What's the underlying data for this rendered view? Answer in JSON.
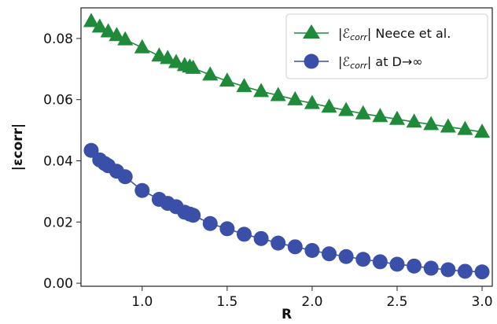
{
  "chart_data": {
    "type": "line",
    "title": "",
    "xlabel": "R",
    "ylabel": "|εcorr|",
    "xlim": [
      0.64,
      3.06
    ],
    "ylim": [
      -0.001,
      0.09
    ],
    "xticks": [
      1.0,
      1.5,
      2.0,
      2.5,
      3.0
    ],
    "xtick_labels": [
      "1.0",
      "1.5",
      "2.0",
      "2.5",
      "3.0"
    ],
    "yticks": [
      0.0,
      0.02,
      0.04,
      0.06,
      0.08
    ],
    "ytick_labels": [
      "0.00",
      "0.02",
      "0.04",
      "0.06",
      "0.08"
    ],
    "grid": false,
    "legend_position": "top-right",
    "series": [
      {
        "name": "|ℰcorr| Neece et al.",
        "legend_main": "|",
        "legend_symbol": "ℰ",
        "legend_sub": "corr",
        "legend_rest": "| Neece et al.",
        "marker": "triangle",
        "color": "#1e8a3a",
        "x": [
          0.7,
          0.75,
          0.8,
          0.85,
          0.9,
          1.0,
          1.1,
          1.15,
          1.2,
          1.25,
          1.28,
          1.3,
          1.4,
          1.5,
          1.6,
          1.7,
          1.8,
          1.9,
          2.0,
          2.1,
          2.2,
          2.3,
          2.4,
          2.5,
          2.6,
          2.7,
          2.8,
          2.9,
          3.0
        ],
        "values": [
          0.0856,
          0.0838,
          0.0822,
          0.081,
          0.0796,
          0.077,
          0.0743,
          0.0735,
          0.0722,
          0.0712,
          0.0707,
          0.0703,
          0.0681,
          0.0661,
          0.0643,
          0.0627,
          0.0614,
          0.06,
          0.0588,
          0.0576,
          0.0565,
          0.0554,
          0.0545,
          0.0536,
          0.0527,
          0.0519,
          0.0511,
          0.0503,
          0.0494
        ]
      },
      {
        "name": "|ℰcorr| at D→∞",
        "legend_main": "|",
        "legend_symbol": "ℰ",
        "legend_sub": "corr",
        "legend_rest": "| at D→∞",
        "marker": "circle",
        "color": "#3a50a8",
        "x": [
          0.7,
          0.75,
          0.78,
          0.8,
          0.85,
          0.9,
          1.0,
          1.1,
          1.15,
          1.2,
          1.25,
          1.28,
          1.3,
          1.4,
          1.5,
          1.6,
          1.7,
          1.8,
          1.9,
          2.0,
          2.1,
          2.2,
          2.3,
          2.4,
          2.5,
          2.6,
          2.7,
          2.8,
          2.9,
          3.0
        ],
        "values": [
          0.0434,
          0.0403,
          0.0391,
          0.0384,
          0.0366,
          0.0348,
          0.0303,
          0.0274,
          0.0261,
          0.025,
          0.0232,
          0.0226,
          0.0222,
          0.0195,
          0.0178,
          0.016,
          0.0146,
          0.0131,
          0.0119,
          0.0107,
          0.0096,
          0.0087,
          0.0078,
          0.007,
          0.0062,
          0.0056,
          0.0049,
          0.0044,
          0.0039,
          0.0037
        ]
      }
    ]
  }
}
